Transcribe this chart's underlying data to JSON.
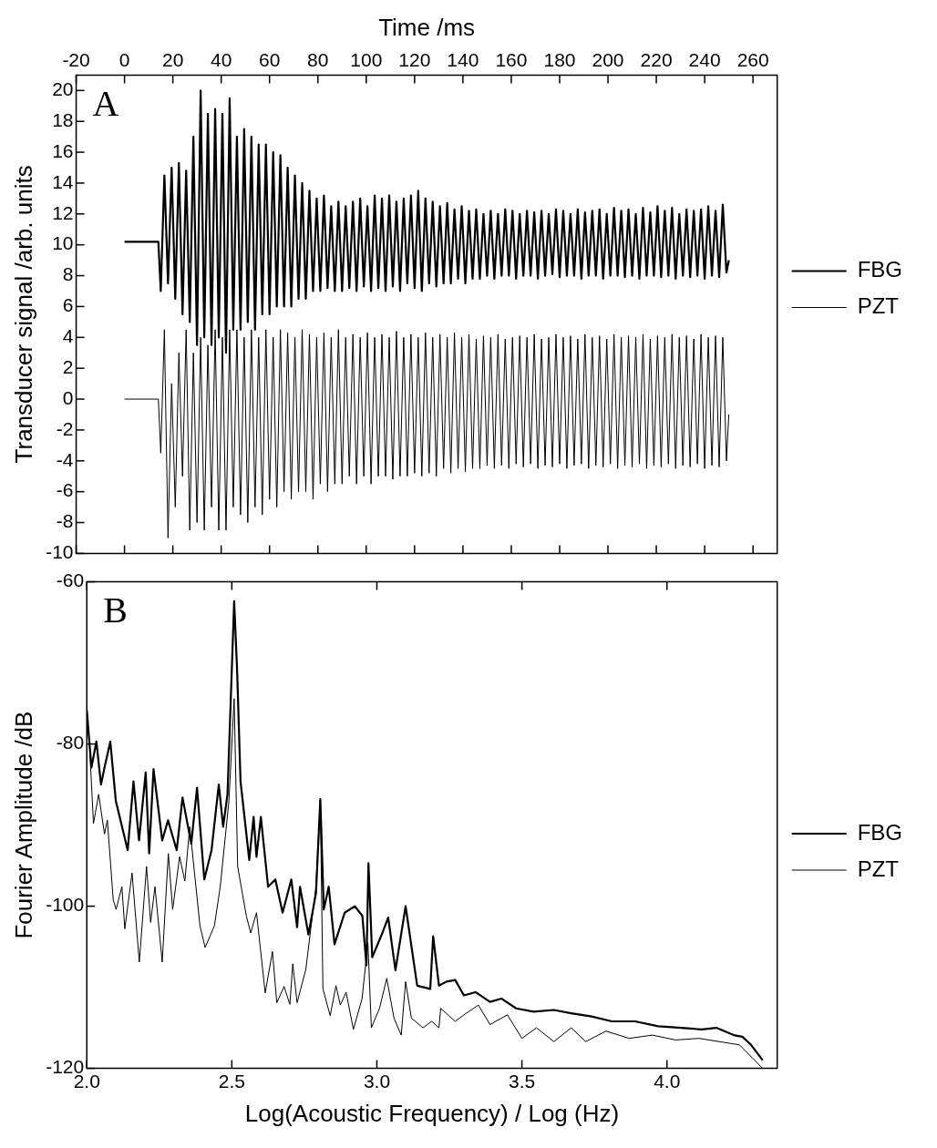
{
  "chart_data": [
    {
      "type": "line",
      "annotations": [
        "A"
      ],
      "xlabel": "Time /ms",
      "ylabel": "Transducer signal /arb. units",
      "xlim": [
        -20,
        270
      ],
      "xticks": [
        -20,
        0,
        20,
        40,
        60,
        80,
        100,
        120,
        140,
        160,
        180,
        200,
        220,
        240,
        260
      ],
      "ylim": [
        -10,
        21
      ],
      "yticks": [
        -10,
        -8,
        -6,
        -4,
        -2,
        0,
        2,
        4,
        6,
        8,
        10,
        12,
        14,
        16,
        18,
        20
      ],
      "legend": "right",
      "marker": "none",
      "line_style": "solid",
      "grid": false,
      "x": [
        0,
        14,
        15,
        16.5,
        18,
        19.5,
        21,
        22.5,
        24,
        25.5,
        27,
        28.5,
        30,
        31.5,
        33,
        34.5,
        36,
        37.5,
        39,
        40.5,
        42,
        43.5,
        45,
        46.5,
        48,
        49.5,
        51,
        52.5,
        54,
        55.5,
        57,
        58.5,
        60,
        61.5,
        63,
        64.5,
        66,
        67.5,
        69,
        70.5,
        72,
        73.5,
        75,
        76.5,
        78,
        79.5,
        81,
        82.5,
        84,
        85.5,
        87,
        88.5,
        90,
        91.5,
        93,
        94.5,
        96,
        97.5,
        99,
        100.5,
        102,
        103.5,
        105,
        106.5,
        108,
        109.5,
        111,
        112.5,
        114,
        115.5,
        117,
        118.5,
        120,
        121.5,
        123,
        124.5,
        126,
        127.5,
        129,
        130.5,
        132,
        133.5,
        135,
        136.5,
        138,
        139.5,
        141,
        142.5,
        144,
        145.5,
        147,
        148.5,
        150,
        151.5,
        153,
        154.5,
        156,
        157.5,
        159,
        160.5,
        162,
        163.5,
        165,
        166.5,
        168,
        169.5,
        171,
        172.5,
        174,
        175.5,
        177,
        178.5,
        180,
        181.5,
        183,
        184.5,
        186,
        187.5,
        189,
        190.5,
        192,
        193.5,
        195,
        196.5,
        198,
        199.5,
        201,
        202.5,
        204,
        205.5,
        207,
        208.5,
        210,
        211.5,
        213,
        214.5,
        216,
        217.5,
        219,
        220.5,
        222,
        223.5,
        225,
        226.5,
        228,
        229.5,
        231,
        232.5,
        234,
        235.5,
        237,
        238.5,
        240,
        241.5,
        243,
        244.5,
        246,
        247.5,
        249,
        250
      ],
      "series": [
        {
          "name": "FBG",
          "color": "#000000",
          "values": [
            10.2,
            10.2,
            7,
            14.5,
            7.5,
            15,
            6.5,
            15.3,
            5.5,
            14.8,
            5,
            17,
            3.5,
            20,
            4,
            18.5,
            3.5,
            18.8,
            4,
            18.5,
            3,
            19.5,
            4.5,
            17,
            4.5,
            17.5,
            5,
            17,
            4.5,
            16.5,
            5.5,
            16.5,
            5.5,
            16,
            6,
            15.8,
            6,
            15,
            6,
            14.5,
            6.5,
            14,
            6.5,
            13.5,
            7,
            13,
            7,
            13.2,
            7.2,
            12.5,
            7,
            12.8,
            7,
            12.5,
            7.2,
            12.8,
            7,
            13,
            7.3,
            12.5,
            7,
            13.2,
            7.2,
            13,
            7,
            13.2,
            7.3,
            12.8,
            7,
            13,
            7.5,
            13.2,
            7.2,
            13.5,
            7,
            13,
            7.5,
            12.8,
            7.3,
            12.5,
            7.5,
            12.7,
            7.5,
            12.3,
            7.8,
            12.5,
            7.5,
            12.2,
            7.8,
            12.3,
            7.8,
            12,
            8,
            12.2,
            7.8,
            12,
            8,
            12.3,
            8,
            12.2,
            7.8,
            12,
            8,
            12.2,
            8,
            12.1,
            7.8,
            12.2,
            8,
            12,
            8.1,
            12.3,
            7.9,
            12.2,
            8,
            12,
            8,
            12.3,
            7.8,
            12.1,
            8,
            12.2,
            8,
            12.3,
            7.8,
            12,
            8,
            12.4,
            8,
            12.2,
            7.9,
            12.3,
            8,
            12,
            7.8,
            12.4,
            8,
            12.1,
            8,
            12.5,
            7.9,
            12.2,
            8,
            12.4,
            7.8,
            12,
            8,
            12.3,
            7.9,
            12.2,
            8,
            12.3,
            7.8,
            12.5,
            8,
            12.2,
            7.9,
            12.6,
            8.2,
            9
          ]
        },
        {
          "name": "PZT",
          "color": "#000000",
          "values": [
            0,
            0,
            -3.5,
            4.5,
            -9,
            1,
            -7,
            3,
            -5,
            4.5,
            -8.5,
            3,
            -8,
            4,
            -8.5,
            3.5,
            -7,
            4.5,
            -8.5,
            4,
            -8.5,
            4.5,
            -7,
            4.5,
            -7.5,
            4,
            -8,
            4.5,
            -7,
            4,
            -7.5,
            4.5,
            -6.5,
            4,
            -7,
            4.5,
            -6,
            4.3,
            -6.5,
            4,
            -6,
            4.5,
            -6,
            4.2,
            -6.5,
            4,
            -5.5,
            4.3,
            -6,
            4,
            -5.5,
            4.5,
            -5.5,
            4,
            -5,
            4.2,
            -5.5,
            4,
            -5,
            4.3,
            -5.5,
            4,
            -5,
            4.2,
            -5,
            4,
            -5.2,
            4.4,
            -5,
            4,
            -5,
            4.2,
            -4.8,
            4,
            -5,
            4.3,
            -4.8,
            4,
            -5,
            4.2,
            -4.5,
            4,
            -4.8,
            4.3,
            -4.5,
            4,
            -4.7,
            4.2,
            -4.5,
            3.9,
            -4.5,
            4.1,
            -4.3,
            4,
            -4.5,
            4.2,
            -4.3,
            3.9,
            -4.5,
            4,
            -4.2,
            4.1,
            -4.4,
            4,
            -4.2,
            4.2,
            -4.5,
            3.9,
            -4.3,
            4,
            -4.4,
            4.2,
            -4.2,
            4,
            -4.5,
            4.1,
            -4.3,
            3.9,
            -4.2,
            4.2,
            -4.5,
            4,
            -4.3,
            4.1,
            -4.4,
            3.9,
            -4.2,
            4.2,
            -4.5,
            4,
            -4.3,
            4.1,
            -4.4,
            4,
            -4.2,
            4.2,
            -4.5,
            3.9,
            -4.3,
            4.1,
            -4.4,
            4,
            -4.2,
            4.2,
            -4.5,
            4,
            -4.3,
            4.1,
            -4.4,
            3.9,
            -4.2,
            4.2,
            -4.5,
            4,
            -4.3,
            4.1,
            -4.4,
            4,
            -4,
            -1
          ]
        }
      ]
    },
    {
      "type": "line",
      "annotations": [
        "B"
      ],
      "xlabel": "Log(Acoustic Frequency) / Log (Hz)",
      "ylabel": "Fourier Amplitude /dB",
      "xlim": [
        2,
        4.38
      ],
      "xticks": [
        {
          "value": 2,
          "label": "2.0"
        },
        {
          "value": 2.5,
          "label": "2.5"
        },
        {
          "value": 3,
          "label": "3.0"
        },
        {
          "value": 3.5,
          "label": "3.5"
        },
        {
          "value": 4,
          "label": "4.0"
        }
      ],
      "ylim": [
        -120,
        -60
      ],
      "yticks": [
        -120,
        -100,
        -80,
        -60
      ],
      "legend": "right",
      "marker": "none",
      "line_style": "solid",
      "grid": false,
      "series": [
        {
          "name": "FBG",
          "color": "#000000",
          "x": [
            2.0,
            2.016,
            2.033,
            2.049,
            2.061,
            2.081,
            2.1,
            2.141,
            2.161,
            2.18,
            2.203,
            2.215,
            2.23,
            2.26,
            2.28,
            2.31,
            2.33,
            2.36,
            2.38,
            2.405,
            2.43,
            2.455,
            2.47,
            2.485,
            2.5,
            2.508,
            2.518,
            2.53,
            2.56,
            2.575,
            2.585,
            2.6,
            2.625,
            2.65,
            2.675,
            2.705,
            2.725,
            2.735,
            2.764,
            2.79,
            2.805,
            2.817,
            2.834,
            2.854,
            2.889,
            2.924,
            2.95,
            2.964,
            2.971,
            2.984,
            3.019,
            3.039,
            3.064,
            3.099,
            3.139,
            3.184,
            3.194,
            3.214,
            3.24,
            3.27,
            3.3,
            3.34,
            3.39,
            3.43,
            3.48,
            3.54,
            3.61,
            3.67,
            3.74,
            3.81,
            3.89,
            3.97,
            4.05,
            4.12,
            4.17,
            4.23,
            4.26,
            4.29,
            4.33
          ],
          "values": [
            -75.8,
            -82.9,
            -79.7,
            -85,
            -82.9,
            -79.7,
            -87,
            -93.1,
            -84.6,
            -91.9,
            -83.5,
            -93.5,
            -83.1,
            -91.9,
            -89.4,
            -93.1,
            -86.6,
            -92.3,
            -85.4,
            -96.7,
            -93.1,
            -85,
            -90.2,
            -86.2,
            -70.7,
            -62.4,
            -70.7,
            -84.6,
            -94.3,
            -89,
            -93.9,
            -89,
            -97.6,
            -96.7,
            -100.8,
            -96.7,
            -102.6,
            -97.6,
            -103.5,
            -98.4,
            -86.8,
            -100.4,
            -97.6,
            -104.7,
            -100.8,
            -100,
            -101.2,
            -107.3,
            -94.7,
            -106.3,
            -103.3,
            -101.4,
            -107.9,
            -100,
            -109.8,
            -110.2,
            -103.7,
            -109.8,
            -109.3,
            -109.1,
            -111,
            -110.6,
            -111.8,
            -111.4,
            -112.6,
            -113,
            -112.8,
            -113.2,
            -113.6,
            -114.2,
            -114.2,
            -114.8,
            -115,
            -115.2,
            -115,
            -115.9,
            -116.1,
            -117.1,
            -119
          ]
        },
        {
          "name": "PZT",
          "color": "#000000",
          "x": [
            2.0,
            2.011,
            2.023,
            2.041,
            2.061,
            2.071,
            2.091,
            2.101,
            2.121,
            2.131,
            2.156,
            2.181,
            2.206,
            2.22,
            2.235,
            2.26,
            2.281,
            2.296,
            2.32,
            2.338,
            2.355,
            2.39,
            2.408,
            2.44,
            2.46,
            2.49,
            2.508,
            2.52,
            2.55,
            2.565,
            2.585,
            2.615,
            2.64,
            2.655,
            2.68,
            2.7,
            2.71,
            2.725,
            2.755,
            2.79,
            2.805,
            2.814,
            2.839,
            2.859,
            2.874,
            2.894,
            2.919,
            2.949,
            2.969,
            2.981,
            3.009,
            3.034,
            3.059,
            3.084,
            3.099,
            3.119,
            3.159,
            3.189,
            3.214,
            3.22,
            3.27,
            3.3,
            3.35,
            3.39,
            3.45,
            3.5,
            3.55,
            3.61,
            3.67,
            3.72,
            3.79,
            3.87,
            3.95,
            4.03,
            4.11,
            4.18,
            4.25,
            4.33
          ],
          "values": [
            -75.8,
            -81.3,
            -89.8,
            -86.2,
            -91.1,
            -89.4,
            -99.2,
            -100.4,
            -97.6,
            -102.8,
            -95.9,
            -106.9,
            -95.1,
            -102,
            -97.6,
            -106.9,
            -93.5,
            -100.4,
            -93.9,
            -96.9,
            -90.2,
            -102.4,
            -105.1,
            -102.4,
            -97.6,
            -87,
            -74.4,
            -95.1,
            -101.2,
            -103.3,
            -100.8,
            -110.7,
            -105.6,
            -111.9,
            -109.9,
            -112.1,
            -107.1,
            -111.9,
            -107.8,
            -97.6,
            -87,
            -110.2,
            -113.5,
            -109.8,
            -112.2,
            -110.6,
            -115.2,
            -111.4,
            -104.5,
            -115,
            -112.6,
            -108.9,
            -113.8,
            -115.9,
            -109.3,
            -113.8,
            -115,
            -114.2,
            -115,
            -112.6,
            -114.2,
            -113.4,
            -112.2,
            -114.6,
            -113.4,
            -116.3,
            -115,
            -116.7,
            -115,
            -116.7,
            -115.4,
            -116.3,
            -115.9,
            -116.5,
            -116.3,
            -116.7,
            -117.1,
            -120
          ]
        }
      ]
    }
  ]
}
